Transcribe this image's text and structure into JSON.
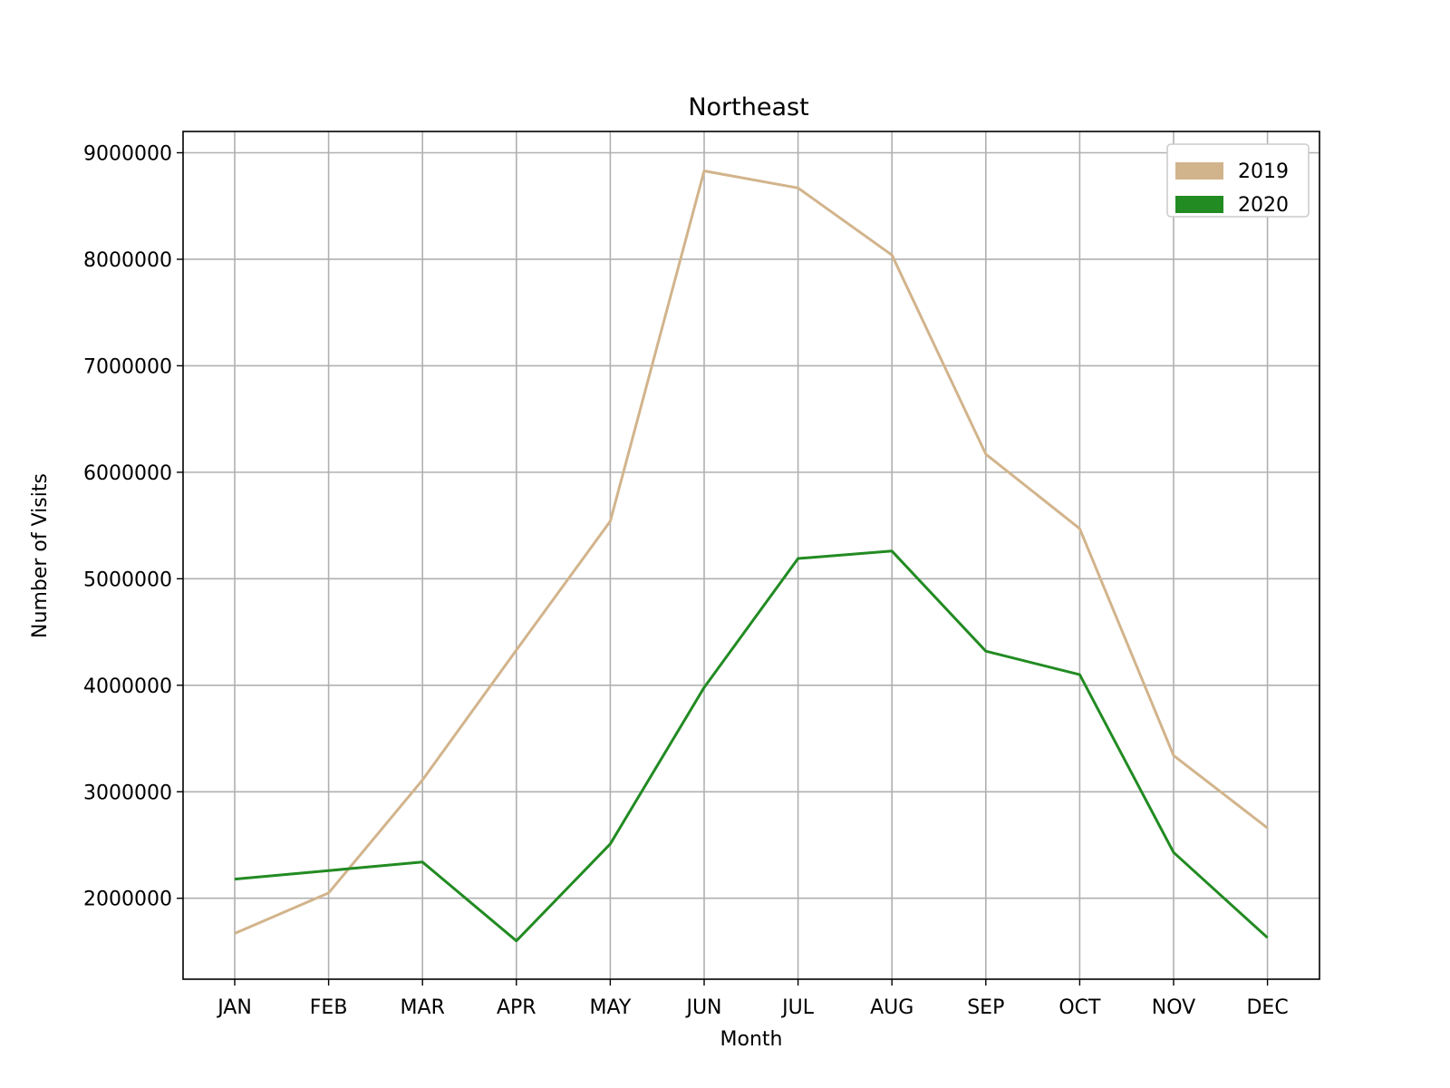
{
  "chart_data": {
    "type": "line",
    "title": "Northeast",
    "xlabel": "Month",
    "ylabel": "Number of Visits",
    "categories": [
      "JAN",
      "FEB",
      "MAR",
      "APR",
      "MAY",
      "JUN",
      "JUL",
      "AUG",
      "SEP",
      "OCT",
      "NOV",
      "DEC"
    ],
    "yticks": [
      2000000,
      3000000,
      4000000,
      5000000,
      6000000,
      7000000,
      8000000,
      9000000
    ],
    "ylim": [
      1240000,
      9200000
    ],
    "grid": true,
    "legend_position": "top-right",
    "series": [
      {
        "name": "2019",
        "color": "#d2b48c",
        "values": [
          1670000,
          2050000,
          3110000,
          4330000,
          5540000,
          8830000,
          8670000,
          8040000,
          6170000,
          5470000,
          3340000,
          2660000
        ]
      },
      {
        "name": "2020",
        "color": "#228b22",
        "values": [
          2180000,
          2260000,
          2340000,
          1600000,
          2510000,
          3980000,
          5190000,
          5260000,
          4320000,
          4100000,
          2430000,
          1630000
        ]
      }
    ]
  }
}
